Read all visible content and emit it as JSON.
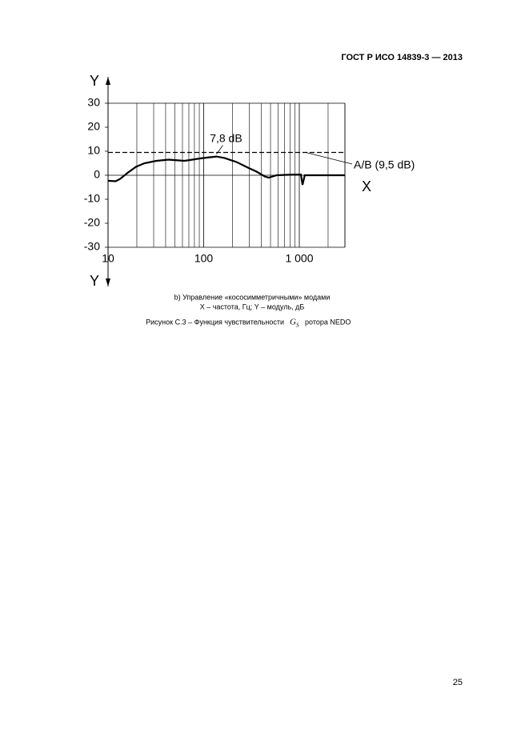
{
  "header": {
    "title": "ГОСТ Р ИСО 14839-3 — 2013"
  },
  "chart_data": {
    "type": "line",
    "ylabel": "Y",
    "xlabel": "X",
    "ylabel_bottom": "Y",
    "x_scale": "log",
    "xlim": [
      10,
      3000
    ],
    "ylim": [
      -30,
      30
    ],
    "xticks": [
      10,
      100,
      {
        "value": 1000,
        "label": "1 000"
      }
    ],
    "yticks": [
      -30,
      -20,
      -10,
      0,
      10,
      20,
      30
    ],
    "xgrid": [
      20,
      30,
      40,
      50,
      60,
      70,
      80,
      90,
      200,
      300,
      400,
      500,
      600,
      700,
      800,
      900,
      2000,
      3000
    ],
    "color": "#000000",
    "x": [
      10,
      12,
      13.4,
      16,
      19.6,
      24,
      32,
      43,
      63,
      76,
      92,
      117,
      136,
      165,
      221,
      296,
      358,
      435,
      479,
      580,
      780,
      1040,
      1080,
      1140,
      1680,
      3000
    ],
    "values": [
      -2.3,
      -2.5,
      -1.5,
      1,
      3.5,
      5,
      6,
      6.5,
      6,
      6.5,
      7,
      7.5,
      7.8,
      7.2,
      5.5,
      3,
      1.5,
      -0.5,
      -1,
      0,
      0.2,
      0.3,
      -4,
      0,
      0,
      0
    ],
    "ref_line": {
      "value": 9.5,
      "label": "A/B (9,5 dB)"
    },
    "annotations": [
      {
        "text": "7,8 dB",
        "x": 136,
        "y": 7.8
      }
    ]
  },
  "caption": {
    "subtitle": "b) Управление «кососимметричными» модами",
    "legend": "X – частота, Гц; Y – модуль, дБ",
    "figure": "Рисунок С.3 – Функция чувствительности",
    "symbol": "G",
    "symbol_sub": "S",
    "figure_end": "ротора NEDO"
  },
  "page_number": "25"
}
